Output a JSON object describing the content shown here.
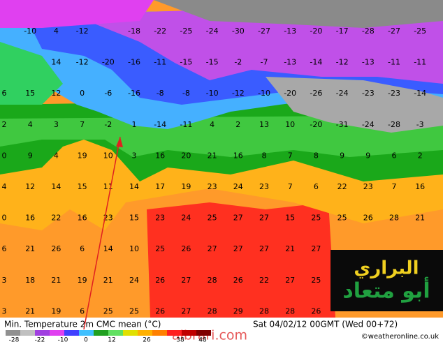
{
  "map": {
    "rows": [
      [
        null,
        -10,
        4,
        -12,
        null,
        -18,
        -22,
        -25,
        -24,
        -30,
        -27,
        -13,
        -20,
        -17,
        -28,
        -27,
        -25
      ],
      [
        null,
        null,
        14,
        -12,
        -20,
        -16,
        -11,
        -15,
        -15,
        -2,
        -7,
        -13,
        -14,
        -12,
        -13,
        -11,
        -11
      ],
      [
        6,
        15,
        12,
        0,
        -6,
        -16,
        -8,
        -8,
        -10,
        -12,
        -10,
        -20,
        -26,
        -24,
        -23,
        -23,
        -14
      ],
      [
        2,
        4,
        3,
        7,
        -2,
        1,
        -14,
        -11,
        4,
        2,
        13,
        10,
        -20,
        -31,
        -24,
        -28,
        -3
      ],
      [
        0,
        9,
        4,
        19,
        10,
        3,
        16,
        20,
        21,
        16,
        8,
        7,
        8,
        9,
        9,
        6,
        2
      ],
      [
        4,
        12,
        14,
        15,
        11,
        14,
        17,
        19,
        23,
        24,
        23,
        7,
        6,
        22,
        23,
        7,
        16
      ],
      [
        0,
        16,
        22,
        16,
        23,
        15,
        23,
        24,
        25,
        27,
        27,
        15,
        25,
        25,
        26,
        28,
        21
      ],
      [
        6,
        21,
        26,
        6,
        14,
        10,
        25,
        26,
        27,
        27,
        27,
        21,
        27,
        null,
        null,
        null,
        null
      ],
      [
        3,
        18,
        21,
        19,
        21,
        24,
        26,
        27,
        28,
        26,
        22,
        27,
        25,
        null,
        null,
        null,
        null
      ],
      [
        3,
        21,
        19,
        6,
        25,
        25,
        26,
        27,
        28,
        29,
        28,
        28,
        26,
        null,
        null,
        null,
        null
      ]
    ]
  },
  "footer": {
    "title": "Min. Temperature 2m CMC mean (°C)",
    "date": "Sat 04/02/12 00GMT   (Wed 00+72)",
    "credit": "©weatheronline.co.uk",
    "legend": [
      -28,
      -22,
      -10,
      0,
      12,
      26,
      38,
      48
    ]
  },
  "logo": {
    "line1": "البراري",
    "line2": "أبو متعاد"
  },
  "watermark": "albrari.com"
}
